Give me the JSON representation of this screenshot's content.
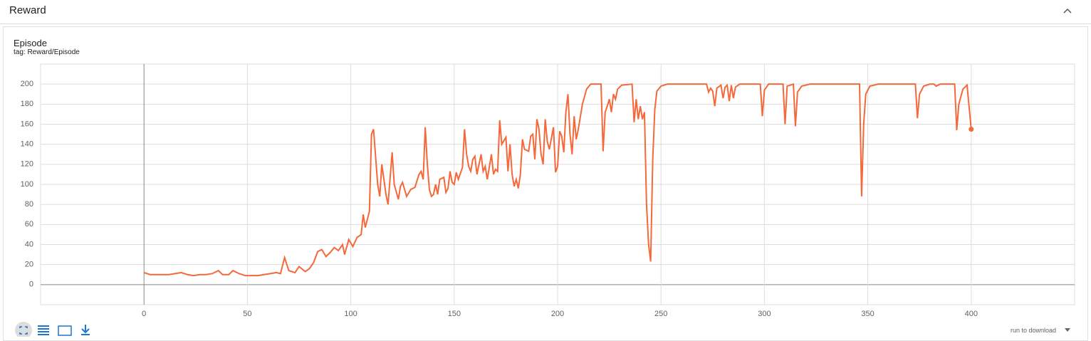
{
  "header": {
    "title": "Reward"
  },
  "card": {
    "title": "Episode",
    "tag": "tag: Reward/Episode",
    "run_label": "run to download"
  },
  "chart_data": {
    "type": "line",
    "color": "#f4683a",
    "x": [
      0,
      3,
      6,
      9,
      12,
      15,
      18,
      21,
      24,
      27,
      30,
      33,
      36,
      38,
      41,
      43,
      46,
      49,
      52,
      55,
      58,
      61,
      64,
      66,
      68,
      70,
      73,
      75,
      78,
      80,
      82,
      84,
      86,
      88,
      90,
      92,
      94,
      96,
      97,
      99,
      101,
      103,
      105,
      106,
      107,
      109,
      110,
      111,
      113,
      114,
      115,
      117,
      118,
      120,
      121,
      123,
      124,
      125,
      127,
      129,
      131,
      133,
      134,
      135,
      136,
      137,
      138,
      139,
      140,
      141,
      142,
      143,
      145,
      146,
      147,
      148,
      149,
      150,
      151,
      152,
      154,
      155,
      156,
      157,
      158,
      159,
      160,
      161,
      163,
      164,
      165,
      166,
      168,
      169,
      170,
      171,
      172,
      173,
      175,
      176,
      177,
      178,
      179,
      180,
      181,
      182,
      183,
      184,
      186,
      187,
      188,
      189,
      190,
      191,
      192,
      193,
      194,
      195,
      196,
      198,
      199,
      200,
      201,
      202,
      203,
      204,
      205,
      206,
      207,
      208,
      209,
      210,
      212,
      214,
      216,
      221,
      222,
      223,
      224,
      225,
      226,
      227,
      228,
      229,
      231,
      236,
      237,
      238,
      239,
      240,
      241,
      242,
      243,
      244,
      245,
      246,
      247,
      248,
      250,
      253,
      272,
      273,
      274,
      275,
      276,
      277,
      279,
      280,
      281,
      282,
      283,
      284,
      285,
      286,
      288,
      298,
      299,
      300,
      302,
      309,
      310,
      311,
      314,
      315,
      316,
      318,
      322,
      346,
      347,
      348,
      349,
      351,
      355,
      373,
      374,
      375,
      377,
      380,
      382,
      383,
      385,
      392,
      393,
      394,
      396,
      398,
      400
    ],
    "values": [
      12,
      10,
      10,
      10,
      10,
      11,
      12,
      10,
      9,
      10,
      10,
      11,
      14,
      10,
      10,
      14,
      11,
      9,
      9,
      9,
      10,
      11,
      12,
      11,
      27,
      14,
      12,
      18,
      13,
      16,
      22,
      33,
      35,
      28,
      32,
      37,
      34,
      40,
      30,
      45,
      38,
      47,
      50,
      70,
      57,
      73,
      150,
      155,
      100,
      88,
      120,
      90,
      80,
      132,
      100,
      85,
      98,
      102,
      88,
      95,
      97,
      110,
      113,
      105,
      157,
      120,
      95,
      88,
      90,
      100,
      90,
      105,
      107,
      92,
      96,
      113,
      102,
      100,
      112,
      105,
      117,
      155,
      130,
      118,
      113,
      125,
      128,
      110,
      130,
      113,
      118,
      105,
      130,
      110,
      115,
      113,
      164,
      140,
      147,
      113,
      140,
      110,
      98,
      105,
      96,
      110,
      145,
      135,
      133,
      148,
      150,
      125,
      165,
      155,
      130,
      120,
      165,
      143,
      135,
      157,
      112,
      118,
      153,
      148,
      132,
      172,
      190,
      150,
      130,
      168,
      145,
      155,
      180,
      195,
      200,
      200,
      133,
      172,
      178,
      185,
      172,
      190,
      185,
      195,
      199,
      200,
      162,
      185,
      165,
      178,
      165,
      172,
      80,
      40,
      23,
      125,
      175,
      193,
      198,
      200,
      200,
      192,
      196,
      193,
      178,
      196,
      199,
      186,
      197,
      199,
      183,
      199,
      186,
      197,
      200,
      200,
      168,
      194,
      200,
      200,
      160,
      198,
      200,
      158,
      192,
      198,
      200,
      200,
      88,
      160,
      190,
      198,
      200,
      200,
      166,
      190,
      198,
      200,
      200,
      198,
      200,
      200,
      154,
      180,
      195,
      199,
      155
    ],
    "xlim": [
      -50,
      450
    ],
    "ylim": [
      -20,
      220
    ],
    "xticks": [
      0,
      50,
      100,
      150,
      200,
      250,
      300,
      350,
      400
    ],
    "yticks": [
      0,
      20,
      40,
      60,
      80,
      100,
      120,
      140,
      160,
      180,
      200
    ],
    "grid": true
  }
}
